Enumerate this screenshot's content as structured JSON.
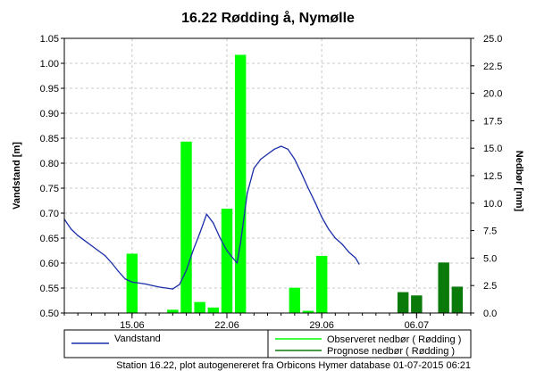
{
  "chart_data": {
    "type": "bar+line",
    "title": "16.22 Rødding å, Nymølle",
    "ylabel_left": "Vandstand [m]",
    "ylabel_right": "Nedbør [mm]",
    "ylim_left": [
      0.5,
      1.05
    ],
    "ylim_right": [
      0.0,
      25.0
    ],
    "yticks_left": [
      "0.50",
      "0.55",
      "0.60",
      "0.65",
      "0.70",
      "0.75",
      "0.80",
      "0.85",
      "0.90",
      "0.95",
      "1.00",
      "1.05"
    ],
    "yticks_right": [
      "0.0",
      "2.5",
      "5.0",
      "7.5",
      "10.0",
      "12.5",
      "15.0",
      "17.5",
      "20.0",
      "22.5",
      "25.0"
    ],
    "x_start": "2015-06-10",
    "x_end": "2015-07-10",
    "xticks": [
      {
        "date": "2015-06-15",
        "label": "15.06"
      },
      {
        "date": "2015-06-22",
        "label": "22.06"
      },
      {
        "date": "2015-06-29",
        "label": "29.06"
      },
      {
        "date": "2015-07-06",
        "label": "06.07"
      }
    ],
    "grid": true,
    "legend_placement": "bottom",
    "colors": {
      "vandstand": "#1a2ea8",
      "observeret": "#00ff00",
      "prognose": "#0a7a0a"
    },
    "series": [
      {
        "name": "Vandstand",
        "type": "line",
        "axis": "left",
        "points": [
          [
            "2015-06-10",
            0.688
          ],
          [
            "2015-06-10T12",
            0.668
          ],
          [
            "2015-06-11",
            0.655
          ],
          [
            "2015-06-11T12",
            0.645
          ],
          [
            "2015-06-12",
            0.635
          ],
          [
            "2015-06-12T12",
            0.625
          ],
          [
            "2015-06-13",
            0.615
          ],
          [
            "2015-06-13T12",
            0.6
          ],
          [
            "2015-06-14",
            0.583
          ],
          [
            "2015-06-14T12",
            0.568
          ],
          [
            "2015-06-15",
            0.562
          ],
          [
            "2015-06-15T12",
            0.56
          ],
          [
            "2015-06-16",
            0.558
          ],
          [
            "2015-06-16T12",
            0.555
          ],
          [
            "2015-06-17",
            0.552
          ],
          [
            "2015-06-17T12",
            0.55
          ],
          [
            "2015-06-18",
            0.548
          ],
          [
            "2015-06-18T12",
            0.557
          ],
          [
            "2015-06-19",
            0.585
          ],
          [
            "2015-06-19T12",
            0.625
          ],
          [
            "2015-06-20",
            0.66
          ],
          [
            "2015-06-20T12",
            0.698
          ],
          [
            "2015-06-21",
            0.68
          ],
          [
            "2015-06-21T12",
            0.65
          ],
          [
            "2015-06-22",
            0.625
          ],
          [
            "2015-06-22T12",
            0.608
          ],
          [
            "2015-06-22T18",
            0.6
          ],
          [
            "2015-06-23",
            0.64
          ],
          [
            "2015-06-23T12",
            0.74
          ],
          [
            "2015-06-24",
            0.79
          ],
          [
            "2015-06-24T12",
            0.808
          ],
          [
            "2015-06-25",
            0.818
          ],
          [
            "2015-06-25T12",
            0.828
          ],
          [
            "2015-06-26",
            0.834
          ],
          [
            "2015-06-26T12",
            0.828
          ],
          [
            "2015-06-27",
            0.808
          ],
          [
            "2015-06-27T12",
            0.78
          ],
          [
            "2015-06-28",
            0.75
          ],
          [
            "2015-06-28T12",
            0.722
          ],
          [
            "2015-06-29",
            0.692
          ],
          [
            "2015-06-29T12",
            0.668
          ],
          [
            "2015-06-30",
            0.65
          ],
          [
            "2015-06-30T12",
            0.638
          ],
          [
            "2015-07-01",
            0.622
          ],
          [
            "2015-07-01T12",
            0.61
          ],
          [
            "2015-07-01T18",
            0.598
          ]
        ]
      },
      {
        "name": "Observeret nedbør ( Rødding )",
        "type": "bar",
        "axis": "right",
        "bars": [
          {
            "date": "2015-06-15",
            "value": 5.4
          },
          {
            "date": "2015-06-18",
            "value": 0.3
          },
          {
            "date": "2015-06-19",
            "value": 15.6
          },
          {
            "date": "2015-06-20",
            "value": 1.0
          },
          {
            "date": "2015-06-21",
            "value": 0.5
          },
          {
            "date": "2015-06-22",
            "value": 9.5
          },
          {
            "date": "2015-06-23",
            "value": 23.5
          },
          {
            "date": "2015-06-27",
            "value": 2.3
          },
          {
            "date": "2015-06-28",
            "value": 0.2
          },
          {
            "date": "2015-06-29",
            "value": 5.2
          }
        ]
      },
      {
        "name": "Prognose nedbør ( Rødding )",
        "type": "bar",
        "axis": "right",
        "bars": [
          {
            "date": "2015-07-05",
            "value": 1.9
          },
          {
            "date": "2015-07-06",
            "value": 1.6
          },
          {
            "date": "2015-07-08",
            "value": 4.6
          },
          {
            "date": "2015-07-09",
            "value": 2.4
          }
        ]
      }
    ]
  },
  "legend": {
    "vandstand": "Vandstand",
    "observeret": "Observeret nedbør ( Rødding )",
    "prognose": "Prognose nedbør ( Rødding )"
  },
  "footer": "Station 16.22, plot autogenereret fra Orbicons Hymer database 01-07-2015 06:21"
}
